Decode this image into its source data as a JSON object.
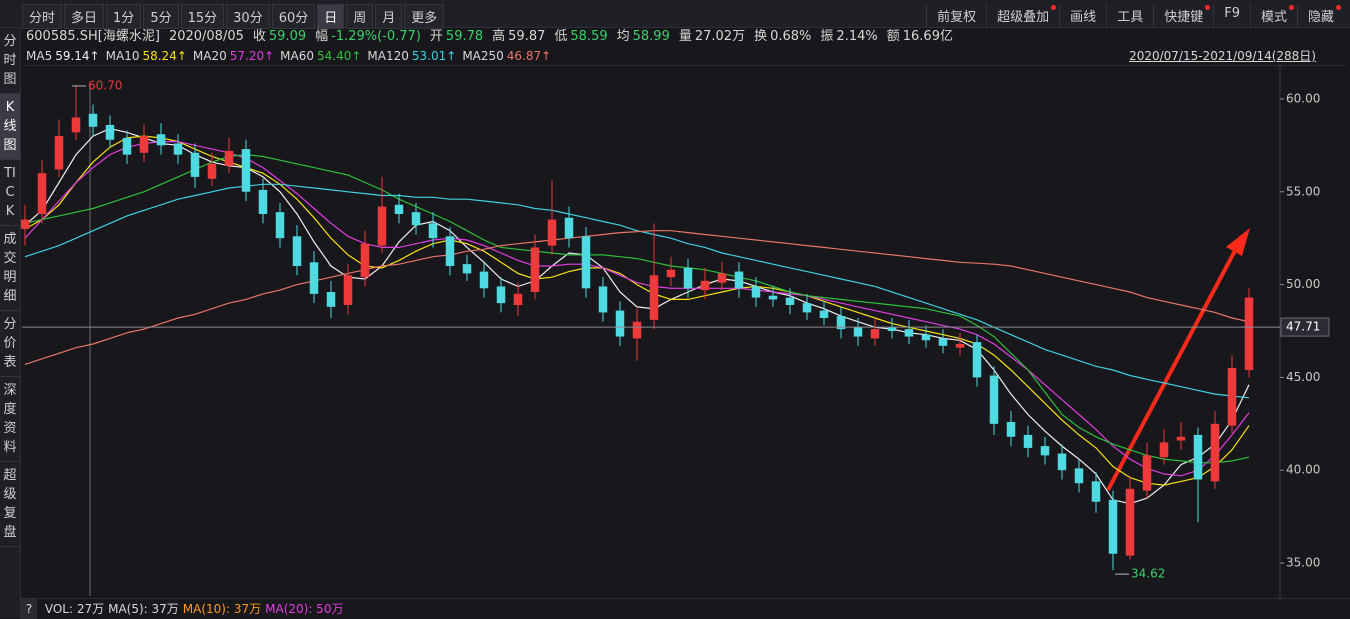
{
  "toolbar": {
    "periods": [
      "分时",
      "多日",
      "1分",
      "5分",
      "15分",
      "30分",
      "60分",
      "日",
      "周",
      "月",
      "更多"
    ],
    "active": "日",
    "tools": [
      {
        "text": "前复权",
        "dot": false
      },
      {
        "text": "超级叠加",
        "dot": true
      },
      {
        "text": "画线",
        "dot": false
      },
      {
        "text": "工具",
        "dot": false
      },
      {
        "text": "快捷键",
        "dot": true
      },
      {
        "text": "F9",
        "dot": false
      },
      {
        "text": "模式",
        "dot": true
      },
      {
        "text": "隐藏",
        "dot": true
      }
    ]
  },
  "sidebar": {
    "tabs": [
      "分时图",
      "K线图",
      "TICK",
      "成交明细",
      "分价表",
      "深度资料",
      "超级复盘"
    ],
    "active": "K线图"
  },
  "info": {
    "code": "600585.SH[海螺水泥]",
    "date": "2020/08/05",
    "items": [
      {
        "label": "收",
        "value": "59.09",
        "color": "#3ad16a"
      },
      {
        "label": "幅",
        "value": "-1.29%(-0.77)",
        "color": "#3ad16a"
      },
      {
        "label": "开",
        "value": "59.78",
        "color": "#3ad16a"
      },
      {
        "label": "高",
        "value": "59.87",
        "color": "#d8d8d8"
      },
      {
        "label": "低",
        "value": "58.59",
        "color": "#3ad16a"
      },
      {
        "label": "均",
        "value": "58.99",
        "color": "#3ad16a"
      },
      {
        "label": "量",
        "value": "27.02万",
        "color": "#d8d8d8"
      },
      {
        "label": "换",
        "value": "0.68%",
        "color": "#d8d8d8"
      },
      {
        "label": "振",
        "value": "2.14%",
        "color": "#d8d8d8"
      },
      {
        "label": "额",
        "value": "16.69亿",
        "color": "#d8d8d8"
      }
    ]
  },
  "bottom": {
    "help": "?",
    "items": [
      {
        "text": "VOL: 27万",
        "color": "#d8d8d8"
      },
      {
        "text": "MA(5): 37万",
        "color": "#d8d8d8"
      },
      {
        "text": "MA(10): 37万",
        "color": "#ff9a1a"
      },
      {
        "text": "MA(20): 50万",
        "color": "#e23ee2"
      }
    ]
  },
  "chart_data": {
    "type": "candlestick",
    "range": "2020/07/15-2021/09/14(288日)",
    "up_color": "#ee3a3a",
    "down_color": "#4fd9e0",
    "open": [
      53,
      53.8,
      56.2,
      58.2,
      59.2,
      58.6,
      57.9,
      57.1,
      58.1,
      57.6,
      57.1,
      55.7,
      56.4,
      57.3,
      55.1,
      53.9,
      52.6,
      51.2,
      49.6,
      48.9,
      50.4,
      52.1,
      54.3,
      53.9,
      53.3,
      52.6,
      51.1,
      50.7,
      49.9,
      48.9,
      49.6,
      52.1,
      53.6,
      52.6,
      49.9,
      48.6,
      47.1,
      48.1,
      50.4,
      50.9,
      49.7,
      50.1,
      50.7,
      49.9,
      49.4,
      49.3,
      49,
      48.6,
      48.3,
      47.7,
      47.1,
      47.7,
      47.6,
      47.3,
      47.1,
      46.6,
      46.9,
      45.1,
      42.6,
      41.9,
      41.3,
      40.9,
      40.1,
      39.4,
      38.4,
      35.4,
      38.9,
      40.7,
      41.6,
      41.9,
      39.4,
      42.4,
      45.4
    ],
    "high": [
      54.3,
      56.7,
      58.9,
      60.7,
      59.7,
      59.1,
      58.3,
      58.6,
      58.7,
      58.1,
      57.6,
      57.1,
      57.9,
      57.8,
      55.7,
      54.4,
      53.2,
      51.8,
      50.2,
      51.1,
      52.9,
      55.8,
      54.9,
      54.4,
      53.9,
      53.1,
      51.6,
      51.2,
      50.4,
      50.1,
      52.7,
      55.6,
      54.2,
      53.1,
      50.4,
      49.1,
      48.7,
      53.3,
      51.5,
      51.4,
      50.9,
      51.2,
      51.2,
      50.4,
      49.9,
      49.8,
      49.5,
      49.1,
      48.8,
      48.2,
      48.2,
      48.2,
      48.1,
      47.8,
      47.6,
      47.4,
      47.3,
      45.6,
      43.2,
      42.4,
      41.8,
      41.4,
      40.6,
      39.9,
      38.9,
      39.7,
      41.5,
      42.2,
      42.6,
      42.3,
      43.2,
      46.2,
      49.8
    ],
    "low": [
      52.1,
      53.3,
      55.8,
      57.8,
      58,
      57.4,
      56.5,
      56.6,
      57,
      56.5,
      55.2,
      55.3,
      56,
      54.5,
      53.3,
      52,
      50.5,
      49,
      48.2,
      48.4,
      49.9,
      51.7,
      53.3,
      52.7,
      52,
      50.5,
      50.2,
      49.3,
      48.5,
      48.3,
      49.2,
      51.6,
      52,
      49.3,
      48,
      46.7,
      45.9,
      47.6,
      49.9,
      49.3,
      49.2,
      49.7,
      49.3,
      48.8,
      48.8,
      48.4,
      48.1,
      47.8,
      47.1,
      46.7,
      46.7,
      47.1,
      46.8,
      46.6,
      46.3,
      46.2,
      44.5,
      41.9,
      41.3,
      40.7,
      40.3,
      39.5,
      38.8,
      37.7,
      34.62,
      35.2,
      38.5,
      40.3,
      41.1,
      37.2,
      39,
      42,
      45
    ],
    "close": [
      53.5,
      56,
      58,
      59,
      58.5,
      57.8,
      57,
      58,
      57.5,
      57,
      55.8,
      56.5,
      57.2,
      55,
      53.8,
      52.5,
      51,
      49.5,
      48.8,
      50.5,
      52.2,
      54.2,
      53.8,
      53.2,
      52.5,
      51,
      50.6,
      49.8,
      49,
      49.5,
      52,
      53.5,
      52.5,
      49.8,
      48.5,
      47.2,
      48,
      50.5,
      50.8,
      49.8,
      50.2,
      50.6,
      49.8,
      49.3,
      49.2,
      48.9,
      48.5,
      48.2,
      47.6,
      47.2,
      47.6,
      47.5,
      47.2,
      47,
      46.7,
      46.8,
      45,
      42.5,
      41.8,
      41.2,
      40.8,
      40,
      39.3,
      38.3,
      35.5,
      39,
      40.8,
      41.5,
      41.8,
      39.5,
      42.5,
      45.5,
      49.3
    ],
    "series": [
      {
        "name": "MA5",
        "label": "59.14↑",
        "color": "#f0f0f0",
        "values": [
          53.2,
          54,
          55.5,
          57,
          58,
          58.4,
          58.2,
          57.9,
          57.6,
          57.5,
          57,
          56.6,
          56.4,
          56.3,
          55.8,
          55,
          53.8,
          52.3,
          51,
          50.4,
          50.3,
          51,
          52.3,
          53.2,
          53.4,
          52.9,
          52,
          51.2,
          50.3,
          49.9,
          50.2,
          51,
          51.7,
          51.6,
          50.9,
          49.6,
          48.8,
          48.7,
          49.2,
          49.6,
          50,
          50.3,
          50.2,
          49.9,
          49.6,
          49.4,
          49,
          48.7,
          48.3,
          48,
          47.7,
          47.6,
          47.4,
          47.3,
          47.1,
          47,
          46.5,
          45.4,
          44.1,
          43,
          42.1,
          41.3,
          40.6,
          39.8,
          38.4,
          38.2,
          38.5,
          39.2,
          40.3,
          40.7,
          41.4,
          42.7,
          44.6
        ]
      },
      {
        "name": "MA10",
        "label": "58.24↑",
        "color": "#f5e20f",
        "values": [
          53,
          53.5,
          54.3,
          55.5,
          56.6,
          57.4,
          57.9,
          58,
          57.9,
          57.7,
          57.3,
          56.9,
          56.6,
          56.3,
          56,
          55.4,
          54.6,
          53.6,
          52.5,
          51.6,
          51,
          50.9,
          51.3,
          51.8,
          52.2,
          52.4,
          52.2,
          51.8,
          51.2,
          50.6,
          50.3,
          50.4,
          50.7,
          50.9,
          50.9,
          50.6,
          50,
          49.5,
          49.2,
          49.2,
          49.4,
          49.6,
          49.8,
          49.9,
          49.8,
          49.6,
          49.4,
          49.1,
          48.8,
          48.5,
          48.2,
          47.9,
          47.7,
          47.5,
          47.3,
          47.1,
          46.8,
          46.2,
          45.4,
          44.5,
          43.6,
          42.7,
          41.9,
          41.2,
          40.2,
          39.6,
          39.3,
          39.2,
          39.4,
          39.6,
          40.2,
          41.1,
          42.4
        ]
      },
      {
        "name": "MA20",
        "label": "57.20↑",
        "color": "#e23ee2",
        "values": [
          52.5,
          53.5,
          54.5,
          55.5,
          56.3,
          57,
          57.4,
          57.6,
          57.7,
          57.7,
          57.5,
          57.3,
          57.1,
          56.8,
          56.3,
          55.6,
          54.9,
          54.1,
          53.3,
          52.6,
          52.2,
          52,
          52,
          52.2,
          52.4,
          52.5,
          52.4,
          52.1,
          51.7,
          51.3,
          51,
          51,
          51.1,
          51.1,
          50.9,
          50.5,
          50.1,
          49.9,
          49.8,
          49.8,
          49.8,
          49.8,
          49.8,
          49.7,
          49.6,
          49.5,
          49.4,
          49.2,
          49,
          48.8,
          48.6,
          48.4,
          48.2,
          48,
          47.8,
          47.6,
          47.3,
          46.8,
          46.1,
          45.4,
          44.6,
          43.8,
          43,
          42.2,
          41.3,
          40.6,
          40.1,
          39.8,
          39.7,
          40,
          40.8,
          41.9,
          43.1
        ]
      },
      {
        "name": "MA60",
        "label": "54.40↑",
        "color": "#2fbf3a",
        "values": [
          53.3,
          53.5,
          53.7,
          53.9,
          54.1,
          54.4,
          54.7,
          55,
          55.4,
          55.8,
          56.2,
          56.6,
          56.9,
          57,
          56.9,
          56.7,
          56.5,
          56.3,
          56.1,
          55.9,
          55.5,
          55.1,
          54.6,
          54.2,
          53.8,
          53.4,
          52.9,
          52.4,
          52,
          51.9,
          51.8,
          51.7,
          51.6,
          51.6,
          51.6,
          51.5,
          51.4,
          51.2,
          51,
          50.9,
          50.8,
          50.6,
          50.4,
          50.2,
          49.9,
          49.6,
          49.4,
          49.3,
          49.2,
          49.1,
          49,
          48.9,
          48.8,
          48.7,
          48.5,
          48.3,
          47.8,
          47.2,
          46.3,
          45.4,
          44.2,
          43,
          42.3,
          41.8,
          41.4,
          41.1,
          40.8,
          40.6,
          40.5,
          40.4,
          40.4,
          40.5,
          40.7
        ]
      },
      {
        "name": "MA120",
        "label": "53.01↑",
        "color": "#3fd0e0",
        "values": [
          51.5,
          51.8,
          52.1,
          52.5,
          52.9,
          53.3,
          53.7,
          54,
          54.3,
          54.6,
          54.8,
          55,
          55.2,
          55.3,
          55.4,
          55.4,
          55.3,
          55.2,
          55.1,
          55,
          54.9,
          54.8,
          54.8,
          54.7,
          54.7,
          54.6,
          54.6,
          54.5,
          54.4,
          54.3,
          54.1,
          54,
          53.8,
          53.6,
          53.4,
          53.2,
          52.9,
          52.7,
          52.5,
          52.2,
          52,
          51.7,
          51.5,
          51.3,
          51.1,
          50.9,
          50.7,
          50.5,
          50.3,
          50.1,
          49.9,
          49.6,
          49.3,
          49,
          48.7,
          48.4,
          48.1,
          47.7,
          47.3,
          46.9,
          46.5,
          46.2,
          45.9,
          45.6,
          45.4,
          45.1,
          44.9,
          44.7,
          44.5,
          44.3,
          44.1,
          44,
          43.9
        ]
      },
      {
        "name": "MA250",
        "label": "46.87↑",
        "color": "#e8756a",
        "values": [
          45.7,
          46,
          46.3,
          46.6,
          46.8,
          47.1,
          47.4,
          47.6,
          47.9,
          48.2,
          48.4,
          48.7,
          49,
          49.2,
          49.5,
          49.7,
          50,
          50.2,
          50.4,
          50.6,
          50.8,
          51,
          51.1,
          51.3,
          51.5,
          51.6,
          51.8,
          51.9,
          52.1,
          52.2,
          52.3,
          52.4,
          52.5,
          52.6,
          52.7,
          52.8,
          52.85,
          52.9,
          52.9,
          52.8,
          52.7,
          52.6,
          52.5,
          52.4,
          52.3,
          52.2,
          52.1,
          52,
          51.9,
          51.8,
          51.7,
          51.6,
          51.5,
          51.4,
          51.3,
          51.2,
          51.15,
          51.1,
          51,
          50.8,
          50.6,
          50.4,
          50.2,
          50,
          49.8,
          49.6,
          49.3,
          49.1,
          48.9,
          48.7,
          48.5,
          48.2,
          48
        ]
      }
    ],
    "ylim": [
      33.44,
      61.02
    ],
    "yticks": [
      {
        "value": 35,
        "label": "35.00"
      },
      {
        "value": 40,
        "label": "40.00"
      },
      {
        "value": 45,
        "label": "45.00"
      },
      {
        "value": 50,
        "label": "50.00"
      },
      {
        "value": 55,
        "label": "55.00"
      },
      {
        "value": 60,
        "label": "60.00"
      }
    ],
    "grid": false,
    "cursor_price": 47.71,
    "high_label": {
      "value": 60.7,
      "label": "60.70"
    },
    "low_label": 34.62
  }
}
